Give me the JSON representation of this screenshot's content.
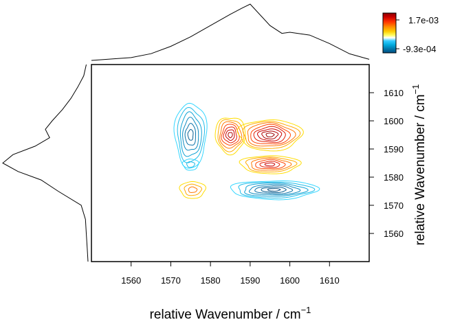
{
  "chart_data": {
    "type": "contour",
    "title": "",
    "xlabel": "relative Wavenumber / cm",
    "xlabel_superscript": "−1",
    "ylabel": "relative Wavenumber / cm",
    "ylabel_superscript": "−1",
    "xlim": [
      1550,
      1620
    ],
    "ylim": [
      1550,
      1620
    ],
    "x_ticks": [
      1560,
      1570,
      1580,
      1590,
      1600,
      1610
    ],
    "y_ticks": [
      1560,
      1570,
      1580,
      1590,
      1600,
      1610
    ],
    "x_tick_labels": [
      "1560",
      "1570",
      "1580",
      "1590",
      "1600",
      "1610"
    ],
    "y_tick_labels": [
      "1560",
      "1570",
      "1580",
      "1590",
      "1600",
      "1610"
    ],
    "grid": false,
    "colorbar": {
      "placement": "top-right",
      "max_label": "1.7e-03",
      "min_label": "-9.3e-04",
      "max_value": 0.0017,
      "min_value": -0.00093,
      "colors": [
        "#8b0000",
        "#cc0000",
        "#ff3300",
        "#ff8800",
        "#ffcc00",
        "#ffff66",
        "#ffffff",
        "#33ccff",
        "#00aadd",
        "#0077aa",
        "#004c80"
      ]
    },
    "contour_peaks": [
      {
        "name": "positive-peak-1",
        "sign": "positive",
        "x": 1585,
        "y": 1595,
        "rx": 3.8,
        "ry": 6.5,
        "rings": 7
      },
      {
        "name": "positive-peak-2",
        "sign": "positive",
        "x": 1595,
        "y": 1595,
        "rx": 8.0,
        "ry": 5.5,
        "rings": 8
      },
      {
        "name": "positive-peak-3",
        "sign": "positive",
        "x": 1595,
        "y": 1584.5,
        "rx": 7.5,
        "ry": 3.2,
        "rings": 6
      },
      {
        "name": "positive-peak-4",
        "sign": "positive",
        "x": 1575.5,
        "y": 1575.5,
        "rx": 3.2,
        "ry": 3.0,
        "rings": 3
      },
      {
        "name": "negative-peak-1",
        "sign": "negative",
        "x": 1575,
        "y": 1595,
        "rx": 4.0,
        "ry": 11.5,
        "rings": 6
      },
      {
        "name": "negative-peak-2",
        "sign": "negative",
        "x": 1575,
        "y": 1584.5,
        "rx": 2.0,
        "ry": 2.0,
        "rings": 2
      },
      {
        "name": "negative-peak-3",
        "sign": "negative",
        "x": 1596,
        "y": 1575.5,
        "rx": 11.0,
        "ry": 3.3,
        "rings": 7
      }
    ],
    "marginal_top": {
      "x": [
        1550,
        1560,
        1565,
        1570,
        1575,
        1580,
        1585,
        1588,
        1590,
        1595,
        1598,
        1600,
        1605,
        1610,
        1615,
        1620
      ],
      "y": [
        0.0,
        0.05,
        0.12,
        0.25,
        0.42,
        0.62,
        0.82,
        0.93,
        1.0,
        0.62,
        0.48,
        0.5,
        0.45,
        0.3,
        0.12,
        0.02
      ]
    },
    "marginal_left": {
      "y": [
        1550,
        1555,
        1560,
        1565,
        1570,
        1575,
        1579,
        1582,
        1585,
        1588,
        1591,
        1594,
        1597,
        1600,
        1604,
        1608,
        1612,
        1616,
        1620
      ],
      "x": [
        0.0,
        0.01,
        0.02,
        0.03,
        0.08,
        0.35,
        0.55,
        0.82,
        1.0,
        0.88,
        0.62,
        0.45,
        0.5,
        0.42,
        0.3,
        0.2,
        0.12,
        0.05,
        0.02
      ]
    }
  }
}
